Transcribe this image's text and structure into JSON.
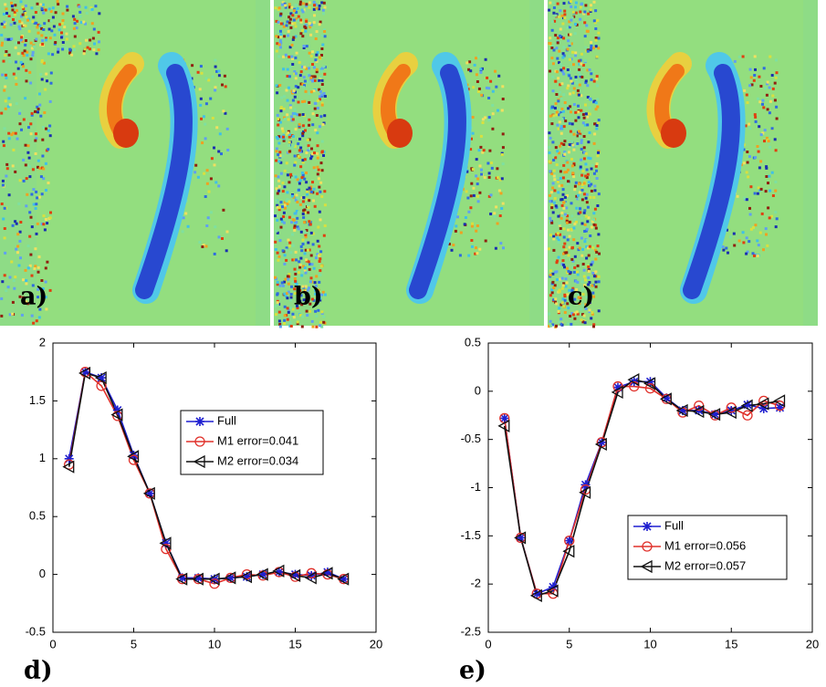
{
  "image_panels": [
    "a)",
    "b)",
    "c)"
  ],
  "chart_data": [
    {
      "type": "line",
      "panel_label": "d)",
      "x": [
        1,
        2,
        3,
        4,
        5,
        6,
        7,
        8,
        9,
        10,
        11,
        12,
        13,
        14,
        15,
        16,
        17,
        18
      ],
      "xlim": [
        0,
        20
      ],
      "xticks": [
        0,
        5,
        10,
        15,
        20
      ],
      "ylim": [
        -0.5,
        2
      ],
      "yticks": [
        -0.5,
        0,
        0.5,
        1,
        1.5,
        2
      ],
      "legend": "center right",
      "series": [
        {
          "name": "Full",
          "color": "#1f1fd0",
          "marker": "star",
          "values": [
            1.0,
            1.75,
            1.7,
            1.42,
            1.03,
            0.7,
            0.27,
            -0.03,
            -0.03,
            -0.04,
            -0.03,
            -0.02,
            0.0,
            0.02,
            0.0,
            -0.01,
            0.02,
            -0.04
          ]
        },
        {
          "name": "M1 error=0.041",
          "color": "#e0302a",
          "marker": "circle",
          "values": [
            0.95,
            1.75,
            1.63,
            1.37,
            0.99,
            0.7,
            0.22,
            -0.04,
            -0.04,
            -0.08,
            -0.03,
            0.0,
            -0.01,
            0.02,
            -0.02,
            0.01,
            0.0,
            -0.04
          ]
        },
        {
          "name": "M2 error=0.034",
          "color": "#111111",
          "marker": "triangle-left",
          "values": [
            0.93,
            1.74,
            1.7,
            1.38,
            1.02,
            0.7,
            0.27,
            -0.04,
            -0.04,
            -0.04,
            -0.03,
            -0.02,
            0.0,
            0.03,
            -0.01,
            -0.03,
            0.01,
            -0.04
          ]
        }
      ]
    },
    {
      "type": "line",
      "panel_label": "e)",
      "x": [
        1,
        2,
        3,
        4,
        5,
        6,
        7,
        8,
        9,
        10,
        11,
        12,
        13,
        14,
        15,
        16,
        17,
        18
      ],
      "xlim": [
        0,
        20
      ],
      "xticks": [
        0,
        5,
        10,
        15,
        20
      ],
      "ylim": [
        -2.5,
        0.5
      ],
      "yticks": [
        -2.5,
        -2,
        -1.5,
        -1,
        -0.5,
        0,
        0.5
      ],
      "legend": "lower right",
      "series": [
        {
          "name": "Full",
          "color": "#1f1fd0",
          "marker": "star",
          "values": [
            -0.28,
            -1.52,
            -2.1,
            -2.03,
            -1.55,
            -0.97,
            -0.53,
            0.04,
            0.1,
            0.1,
            -0.07,
            -0.2,
            -0.2,
            -0.24,
            -0.2,
            -0.14,
            -0.18,
            -0.17
          ]
        },
        {
          "name": "M1 error=0.056",
          "color": "#e0302a",
          "marker": "circle",
          "values": [
            -0.28,
            -1.52,
            -2.1,
            -2.1,
            -1.55,
            -1.02,
            -0.53,
            0.05,
            0.05,
            0.03,
            -0.08,
            -0.22,
            -0.15,
            -0.25,
            -0.17,
            -0.25,
            -0.1,
            -0.15
          ]
        },
        {
          "name": "M2 error=0.057",
          "color": "#111111",
          "marker": "triangle-left",
          "values": [
            -0.36,
            -1.52,
            -2.12,
            -2.07,
            -1.66,
            -1.05,
            -0.55,
            -0.01,
            0.12,
            0.08,
            -0.08,
            -0.2,
            -0.21,
            -0.24,
            -0.22,
            -0.15,
            -0.13,
            -0.1
          ]
        }
      ]
    }
  ]
}
